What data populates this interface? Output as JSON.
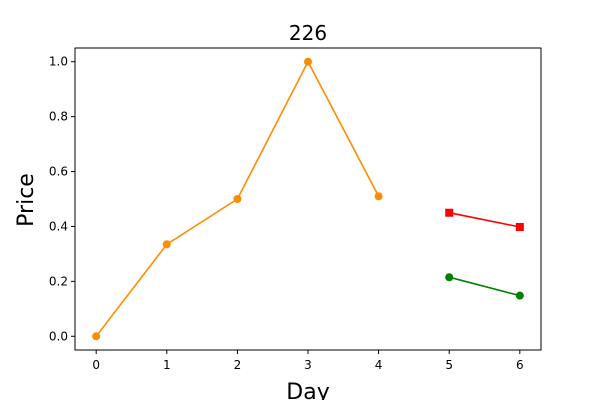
{
  "chart_data": {
    "type": "line",
    "title": "226",
    "xlabel": "Day",
    "ylabel": "Price",
    "xlim": [
      -0.3,
      6.3
    ],
    "ylim": [
      -0.05,
      1.05
    ],
    "xticks": [
      0,
      1,
      2,
      3,
      4,
      5,
      6
    ],
    "xtick_labels": [
      "0",
      "1",
      "2",
      "3",
      "4",
      "5",
      "6"
    ],
    "yticks": [
      0.0,
      0.2,
      0.4,
      0.6,
      0.8,
      1.0
    ],
    "ytick_labels": [
      "0.0",
      "0.2",
      "0.4",
      "0.6",
      "0.8",
      "1.0"
    ],
    "grid": false,
    "series": [
      {
        "color": "#ff8c00",
        "marker": "circle",
        "x": [
          0,
          1,
          2,
          3,
          4
        ],
        "y": [
          0.0,
          0.335,
          0.5,
          1.0,
          0.51
        ]
      },
      {
        "color": "#ff0000",
        "marker": "square",
        "x": [
          5,
          6
        ],
        "y": [
          0.45,
          0.398
        ]
      },
      {
        "color": "#008000",
        "marker": "circle",
        "x": [
          5,
          6
        ],
        "y": [
          0.215,
          0.148
        ]
      }
    ]
  }
}
